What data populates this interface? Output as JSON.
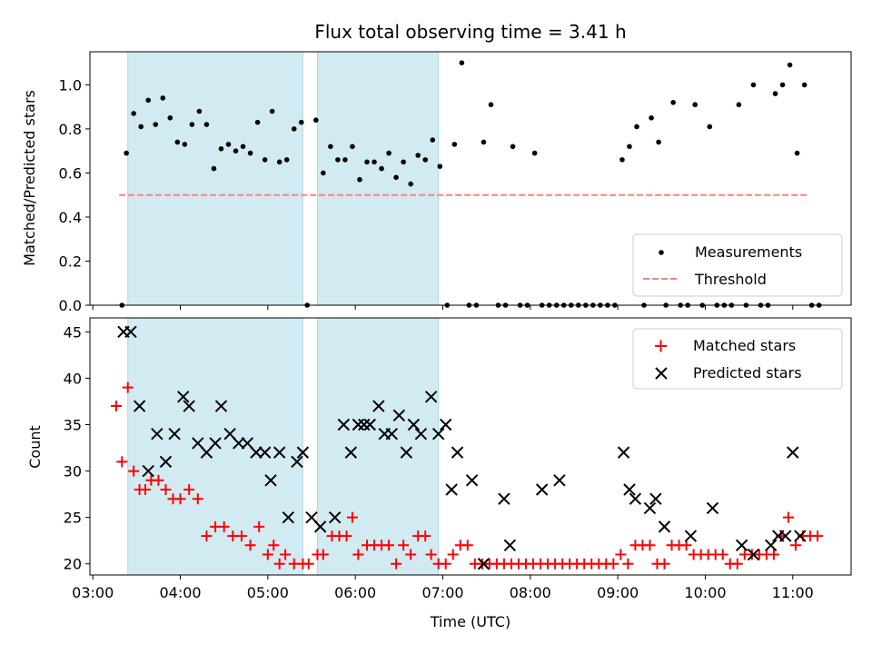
{
  "chart_data": {
    "title": "Flux total observing time = 3.41 h",
    "type": "scatter",
    "shaded_intervals": [
      {
        "start": "03:24",
        "end": "05:24"
      },
      {
        "start": "05:34",
        "end": "06:57"
      }
    ],
    "shade_color": "#add8e6",
    "xlabel": "Time (UTC)",
    "xlim": [
      "02:58",
      "11:40"
    ],
    "xticks": [
      "03:00",
      "04:00",
      "05:00",
      "06:00",
      "07:00",
      "08:00",
      "09:00",
      "10:00",
      "11:00"
    ],
    "top": {
      "ylabel": "Matched/Predicted stars",
      "ylim": [
        0,
        1.15
      ],
      "yticks": [
        "0.0",
        "0.2",
        "0.4",
        "0.6",
        "0.8",
        "1.0"
      ],
      "threshold": {
        "name": "Threshold",
        "value": 0.5,
        "x_start": "03:18",
        "x_end": "11:10",
        "color": "#ff7f7f"
      },
      "measurements": {
        "name": "Measurements",
        "color": "#000000",
        "points": [
          [
            "03:20",
            0.0
          ],
          [
            "03:23",
            0.69
          ],
          [
            "03:28",
            0.87
          ],
          [
            "03:33",
            0.81
          ],
          [
            "03:38",
            0.93
          ],
          [
            "03:43",
            0.82
          ],
          [
            "03:48",
            0.94
          ],
          [
            "03:53",
            0.85
          ],
          [
            "03:58",
            0.74
          ],
          [
            "04:03",
            0.73
          ],
          [
            "04:08",
            0.82
          ],
          [
            "04:13",
            0.88
          ],
          [
            "04:18",
            0.82
          ],
          [
            "04:23",
            0.62
          ],
          [
            "04:28",
            0.71
          ],
          [
            "04:33",
            0.73
          ],
          [
            "04:38",
            0.7
          ],
          [
            "04:43",
            0.72
          ],
          [
            "04:48",
            0.69
          ],
          [
            "04:53",
            0.83
          ],
          [
            "04:58",
            0.66
          ],
          [
            "05:03",
            0.88
          ],
          [
            "05:08",
            0.65
          ],
          [
            "05:13",
            0.66
          ],
          [
            "05:18",
            0.8
          ],
          [
            "05:23",
            0.83
          ],
          [
            "05:27",
            0.0
          ],
          [
            "05:33",
            0.84
          ],
          [
            "05:38",
            0.6
          ],
          [
            "05:43",
            0.72
          ],
          [
            "05:48",
            0.66
          ],
          [
            "05:53",
            0.66
          ],
          [
            "05:58",
            0.72
          ],
          [
            "06:03",
            0.57
          ],
          [
            "06:08",
            0.65
          ],
          [
            "06:13",
            0.65
          ],
          [
            "06:18",
            0.62
          ],
          [
            "06:23",
            0.69
          ],
          [
            "06:28",
            0.58
          ],
          [
            "06:33",
            0.65
          ],
          [
            "06:38",
            0.55
          ],
          [
            "06:43",
            0.68
          ],
          [
            "06:48",
            0.66
          ],
          [
            "06:53",
            0.75
          ],
          [
            "06:58",
            0.63
          ],
          [
            "07:03",
            0.0
          ],
          [
            "07:08",
            0.73
          ],
          [
            "07:13",
            1.1
          ],
          [
            "07:18",
            0.0
          ],
          [
            "07:23",
            0.0
          ],
          [
            "07:28",
            0.74
          ],
          [
            "07:33",
            0.91
          ],
          [
            "07:38",
            0.0
          ],
          [
            "07:43",
            0.0
          ],
          [
            "07:48",
            0.72
          ],
          [
            "07:53",
            0.0
          ],
          [
            "07:58",
            0.0
          ],
          [
            "08:03",
            0.69
          ],
          [
            "08:08",
            0.0
          ],
          [
            "08:13",
            0.0
          ],
          [
            "08:18",
            0.0
          ],
          [
            "08:23",
            0.0
          ],
          [
            "08:28",
            0.0
          ],
          [
            "08:33",
            0.0
          ],
          [
            "08:38",
            0.0
          ],
          [
            "08:43",
            0.0
          ],
          [
            "08:48",
            0.0
          ],
          [
            "08:53",
            0.0
          ],
          [
            "08:58",
            0.0
          ],
          [
            "09:03",
            0.66
          ],
          [
            "09:08",
            0.72
          ],
          [
            "09:13",
            0.81
          ],
          [
            "09:18",
            0.0
          ],
          [
            "09:23",
            0.85
          ],
          [
            "09:28",
            0.74
          ],
          [
            "09:33",
            0.0
          ],
          [
            "09:38",
            0.92
          ],
          [
            "09:43",
            0.0
          ],
          [
            "09:48",
            0.0
          ],
          [
            "09:53",
            0.91
          ],
          [
            "09:58",
            0.0
          ],
          [
            "10:03",
            0.81
          ],
          [
            "10:08",
            0.0
          ],
          [
            "10:13",
            0.0
          ],
          [
            "10:18",
            0.0
          ],
          [
            "10:23",
            0.91
          ],
          [
            "10:28",
            0.0
          ],
          [
            "10:33",
            1.0
          ],
          [
            "10:38",
            0.0
          ],
          [
            "10:43",
            0.0
          ],
          [
            "10:48",
            0.96
          ],
          [
            "10:53",
            1.0
          ],
          [
            "10:58",
            1.09
          ],
          [
            "11:03",
            0.69
          ],
          [
            "11:08",
            1.0
          ],
          [
            "11:13",
            0.0
          ],
          [
            "11:18",
            0.0
          ]
        ]
      },
      "legend": {
        "position": "lower right",
        "entries": [
          "Measurements",
          "Threshold"
        ]
      }
    },
    "bottom": {
      "ylabel": "Count",
      "ylim": [
        18.8,
        46.5
      ],
      "yticks": [
        "20",
        "25",
        "30",
        "35",
        "40",
        "45"
      ],
      "matched": {
        "name": "Matched stars",
        "color": "#ff0000",
        "points": [
          [
            "03:16",
            37
          ],
          [
            "03:20",
            31
          ],
          [
            "03:24",
            39
          ],
          [
            "03:28",
            30
          ],
          [
            "03:32",
            28
          ],
          [
            "03:36",
            28
          ],
          [
            "03:40",
            29
          ],
          [
            "03:45",
            29
          ],
          [
            "03:50",
            28
          ],
          [
            "03:55",
            27
          ],
          [
            "04:00",
            27
          ],
          [
            "04:06",
            28
          ],
          [
            "04:12",
            27
          ],
          [
            "04:18",
            23
          ],
          [
            "04:24",
            24
          ],
          [
            "04:30",
            24
          ],
          [
            "04:36",
            23
          ],
          [
            "04:42",
            23
          ],
          [
            "04:48",
            22
          ],
          [
            "04:54",
            24
          ],
          [
            "05:00",
            21
          ],
          [
            "05:04",
            22
          ],
          [
            "05:08",
            20
          ],
          [
            "05:12",
            21
          ],
          [
            "05:18",
            20
          ],
          [
            "05:24",
            20
          ],
          [
            "05:28",
            20
          ],
          [
            "05:34",
            21
          ],
          [
            "05:38",
            21
          ],
          [
            "05:44",
            23
          ],
          [
            "05:49",
            23
          ],
          [
            "05:54",
            23
          ],
          [
            "05:58",
            25
          ],
          [
            "06:02",
            21
          ],
          [
            "06:08",
            22
          ],
          [
            "06:13",
            22
          ],
          [
            "06:18",
            22
          ],
          [
            "06:23",
            22
          ],
          [
            "06:28",
            20
          ],
          [
            "06:33",
            22
          ],
          [
            "06:38",
            21
          ],
          [
            "06:43",
            23
          ],
          [
            "06:48",
            23
          ],
          [
            "06:52",
            21
          ],
          [
            "06:57",
            20
          ],
          [
            "07:02",
            20
          ],
          [
            "07:07",
            21
          ],
          [
            "07:12",
            22
          ],
          [
            "07:17",
            22
          ],
          [
            "07:22",
            20
          ],
          [
            "07:27",
            20
          ],
          [
            "07:32",
            20
          ],
          [
            "07:37",
            20
          ],
          [
            "07:42",
            20
          ],
          [
            "07:47",
            20
          ],
          [
            "07:52",
            20
          ],
          [
            "07:57",
            20
          ],
          [
            "08:02",
            20
          ],
          [
            "08:07",
            20
          ],
          [
            "08:12",
            20
          ],
          [
            "08:17",
            20
          ],
          [
            "08:22",
            20
          ],
          [
            "08:27",
            20
          ],
          [
            "08:32",
            20
          ],
          [
            "08:37",
            20
          ],
          [
            "08:42",
            20
          ],
          [
            "08:47",
            20
          ],
          [
            "08:52",
            20
          ],
          [
            "08:57",
            20
          ],
          [
            "09:02",
            21
          ],
          [
            "09:07",
            20
          ],
          [
            "09:12",
            22
          ],
          [
            "09:17",
            22
          ],
          [
            "09:22",
            22
          ],
          [
            "09:27",
            20
          ],
          [
            "09:32",
            20
          ],
          [
            "09:37",
            22
          ],
          [
            "09:42",
            22
          ],
          [
            "09:47",
            22
          ],
          [
            "09:52",
            21
          ],
          [
            "09:57",
            21
          ],
          [
            "10:02",
            21
          ],
          [
            "10:07",
            21
          ],
          [
            "10:12",
            21
          ],
          [
            "10:17",
            20
          ],
          [
            "10:22",
            20
          ],
          [
            "10:27",
            21
          ],
          [
            "10:32",
            21
          ],
          [
            "10:37",
            21
          ],
          [
            "10:42",
            21
          ],
          [
            "10:47",
            21
          ],
          [
            "10:52",
            23
          ],
          [
            "10:57",
            25
          ],
          [
            "11:02",
            22
          ],
          [
            "11:07",
            23
          ],
          [
            "11:12",
            23
          ],
          [
            "11:17",
            23
          ]
        ]
      },
      "predicted": {
        "name": "Predicted stars",
        "color": "#000000",
        "points": [
          [
            "03:21",
            45
          ],
          [
            "03:26",
            45
          ],
          [
            "03:32",
            37
          ],
          [
            "03:38",
            30
          ],
          [
            "03:44",
            34
          ],
          [
            "03:50",
            31
          ],
          [
            "03:56",
            34
          ],
          [
            "04:02",
            38
          ],
          [
            "04:06",
            37
          ],
          [
            "04:12",
            33
          ],
          [
            "04:18",
            32
          ],
          [
            "04:24",
            33
          ],
          [
            "04:28",
            37
          ],
          [
            "04:34",
            34
          ],
          [
            "04:40",
            33
          ],
          [
            "04:46",
            33
          ],
          [
            "04:52",
            32
          ],
          [
            "04:58",
            32
          ],
          [
            "05:02",
            29
          ],
          [
            "05:08",
            32
          ],
          [
            "05:14",
            25
          ],
          [
            "05:20",
            31
          ],
          [
            "05:24",
            32
          ],
          [
            "05:30",
            25
          ],
          [
            "05:36",
            24
          ],
          [
            "05:46",
            25
          ],
          [
            "05:52",
            35
          ],
          [
            "05:57",
            32
          ],
          [
            "06:02",
            35
          ],
          [
            "06:06",
            35
          ],
          [
            "06:10",
            35
          ],
          [
            "06:16",
            37
          ],
          [
            "06:20",
            34
          ],
          [
            "06:25",
            34
          ],
          [
            "06:30",
            36
          ],
          [
            "06:35",
            32
          ],
          [
            "06:40",
            35
          ],
          [
            "06:45",
            34
          ],
          [
            "06:52",
            38
          ],
          [
            "06:57",
            34
          ],
          [
            "07:02",
            35
          ],
          [
            "07:06",
            28
          ],
          [
            "07:10",
            32
          ],
          [
            "07:20",
            29
          ],
          [
            "07:28",
            20
          ],
          [
            "07:42",
            27
          ],
          [
            "07:46",
            22
          ],
          [
            "08:08",
            28
          ],
          [
            "08:20",
            29
          ],
          [
            "09:04",
            32
          ],
          [
            "09:08",
            28
          ],
          [
            "09:12",
            27
          ],
          [
            "09:22",
            26
          ],
          [
            "09:26",
            27
          ],
          [
            "09:32",
            24
          ],
          [
            "09:50",
            23
          ],
          [
            "10:05",
            26
          ],
          [
            "10:25",
            22
          ],
          [
            "10:33",
            21
          ],
          [
            "10:45",
            22
          ],
          [
            "10:50",
            23
          ],
          [
            "10:55",
            23
          ],
          [
            "11:00",
            32
          ],
          [
            "11:05",
            23
          ]
        ]
      },
      "legend": {
        "position": "upper right",
        "entries": [
          "Matched stars",
          "Predicted stars"
        ]
      }
    }
  }
}
